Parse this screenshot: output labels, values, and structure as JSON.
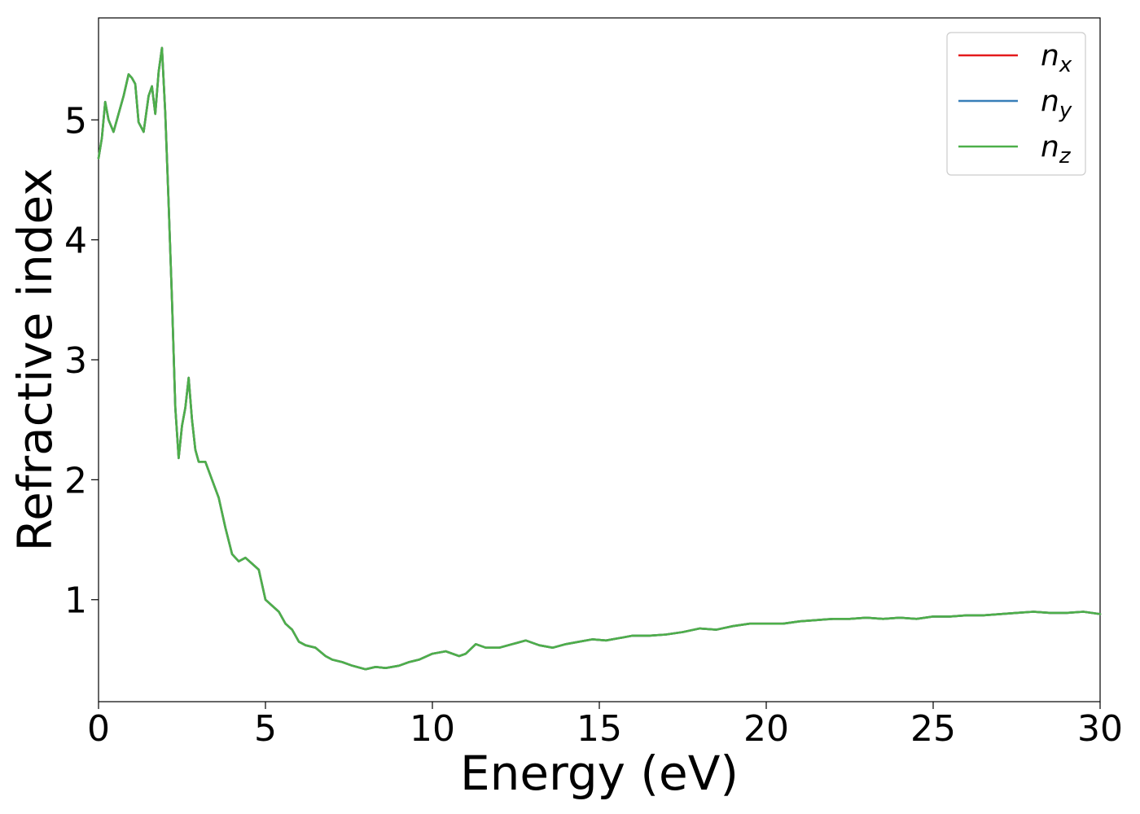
{
  "chart_data": {
    "type": "line",
    "title": "",
    "xlabel": "Energy (eV)",
    "ylabel": "Refractive index",
    "xlim": [
      0,
      30
    ],
    "ylim": [
      0.15,
      5.85
    ],
    "xticks": [
      0,
      5,
      10,
      15,
      20,
      25,
      30
    ],
    "yticks": [
      1,
      2,
      3,
      4,
      5
    ],
    "grid": false,
    "legend_position": "top-right",
    "x": [
      0.0,
      0.1,
      0.2,
      0.3,
      0.45,
      0.6,
      0.75,
      0.9,
      1.0,
      1.1,
      1.2,
      1.35,
      1.5,
      1.6,
      1.7,
      1.8,
      1.9,
      2.0,
      2.1,
      2.2,
      2.3,
      2.4,
      2.5,
      2.6,
      2.7,
      2.8,
      2.9,
      3.0,
      3.2,
      3.4,
      3.6,
      3.8,
      4.0,
      4.2,
      4.4,
      4.6,
      4.8,
      5.0,
      5.2,
      5.4,
      5.6,
      5.8,
      6.0,
      6.2,
      6.5,
      6.8,
      7.0,
      7.3,
      7.6,
      8.0,
      8.3,
      8.6,
      9.0,
      9.3,
      9.6,
      10.0,
      10.4,
      10.8,
      11.0,
      11.3,
      11.6,
      12.0,
      12.4,
      12.8,
      13.2,
      13.6,
      14.0,
      14.4,
      14.8,
      15.2,
      15.6,
      16.0,
      16.5,
      17.0,
      17.5,
      18.0,
      18.5,
      19.0,
      19.5,
      20.0,
      20.5,
      21.0,
      21.5,
      22.0,
      22.5,
      23.0,
      23.5,
      24.0,
      24.5,
      25.0,
      25.5,
      26.0,
      26.5,
      27.0,
      27.5,
      28.0,
      28.5,
      29.0,
      29.5,
      30.0
    ],
    "series": [
      {
        "name": "n_x",
        "label_base": "n",
        "label_sub": "x",
        "color": "#e41a1c",
        "y": [
          4.68,
          4.85,
          5.15,
          5.0,
          4.9,
          5.05,
          5.2,
          5.38,
          5.35,
          5.3,
          4.98,
          4.9,
          5.2,
          5.28,
          5.05,
          5.4,
          5.6,
          5.05,
          4.3,
          3.5,
          2.6,
          2.18,
          2.45,
          2.6,
          2.85,
          2.5,
          2.25,
          2.15,
          2.15,
          2.0,
          1.85,
          1.6,
          1.38,
          1.32,
          1.35,
          1.3,
          1.25,
          1.0,
          0.95,
          0.9,
          0.8,
          0.75,
          0.65,
          0.62,
          0.6,
          0.53,
          0.5,
          0.48,
          0.45,
          0.42,
          0.44,
          0.43,
          0.45,
          0.48,
          0.5,
          0.55,
          0.57,
          0.53,
          0.55,
          0.63,
          0.6,
          0.6,
          0.63,
          0.66,
          0.62,
          0.6,
          0.63,
          0.65,
          0.67,
          0.66,
          0.68,
          0.7,
          0.7,
          0.71,
          0.73,
          0.76,
          0.75,
          0.78,
          0.8,
          0.8,
          0.8,
          0.82,
          0.83,
          0.84,
          0.84,
          0.85,
          0.84,
          0.85,
          0.84,
          0.86,
          0.86,
          0.87,
          0.87,
          0.88,
          0.89,
          0.9,
          0.89,
          0.89,
          0.9,
          0.88
        ]
      },
      {
        "name": "n_y",
        "label_base": "n",
        "label_sub": "y",
        "color": "#377eb8",
        "y": [
          4.68,
          4.85,
          5.15,
          5.0,
          4.9,
          5.05,
          5.2,
          5.38,
          5.35,
          5.3,
          4.98,
          4.9,
          5.2,
          5.28,
          5.05,
          5.4,
          5.6,
          5.05,
          4.3,
          3.5,
          2.6,
          2.18,
          2.45,
          2.6,
          2.85,
          2.5,
          2.25,
          2.15,
          2.15,
          2.0,
          1.85,
          1.6,
          1.38,
          1.32,
          1.35,
          1.3,
          1.25,
          1.0,
          0.95,
          0.9,
          0.8,
          0.75,
          0.65,
          0.62,
          0.6,
          0.53,
          0.5,
          0.48,
          0.45,
          0.42,
          0.44,
          0.43,
          0.45,
          0.48,
          0.5,
          0.55,
          0.57,
          0.53,
          0.55,
          0.63,
          0.6,
          0.6,
          0.63,
          0.66,
          0.62,
          0.6,
          0.63,
          0.65,
          0.67,
          0.66,
          0.68,
          0.7,
          0.7,
          0.71,
          0.73,
          0.76,
          0.75,
          0.78,
          0.8,
          0.8,
          0.8,
          0.82,
          0.83,
          0.84,
          0.84,
          0.85,
          0.84,
          0.85,
          0.84,
          0.86,
          0.86,
          0.87,
          0.87,
          0.88,
          0.89,
          0.9,
          0.89,
          0.89,
          0.9,
          0.88
        ]
      },
      {
        "name": "n_z",
        "label_base": "n",
        "label_sub": "z",
        "color": "#4daf4a",
        "y": [
          4.68,
          4.85,
          5.15,
          5.0,
          4.9,
          5.05,
          5.2,
          5.38,
          5.35,
          5.3,
          4.98,
          4.9,
          5.2,
          5.28,
          5.05,
          5.4,
          5.6,
          5.05,
          4.3,
          3.5,
          2.6,
          2.18,
          2.45,
          2.6,
          2.85,
          2.5,
          2.25,
          2.15,
          2.15,
          2.0,
          1.85,
          1.6,
          1.38,
          1.32,
          1.35,
          1.3,
          1.25,
          1.0,
          0.95,
          0.9,
          0.8,
          0.75,
          0.65,
          0.62,
          0.6,
          0.53,
          0.5,
          0.48,
          0.45,
          0.42,
          0.44,
          0.43,
          0.45,
          0.48,
          0.5,
          0.55,
          0.57,
          0.53,
          0.55,
          0.63,
          0.6,
          0.6,
          0.63,
          0.66,
          0.62,
          0.6,
          0.63,
          0.65,
          0.67,
          0.66,
          0.68,
          0.7,
          0.7,
          0.71,
          0.73,
          0.76,
          0.75,
          0.78,
          0.8,
          0.8,
          0.8,
          0.82,
          0.83,
          0.84,
          0.84,
          0.85,
          0.84,
          0.85,
          0.84,
          0.86,
          0.86,
          0.87,
          0.87,
          0.88,
          0.89,
          0.9,
          0.89,
          0.89,
          0.9,
          0.88
        ]
      }
    ]
  }
}
